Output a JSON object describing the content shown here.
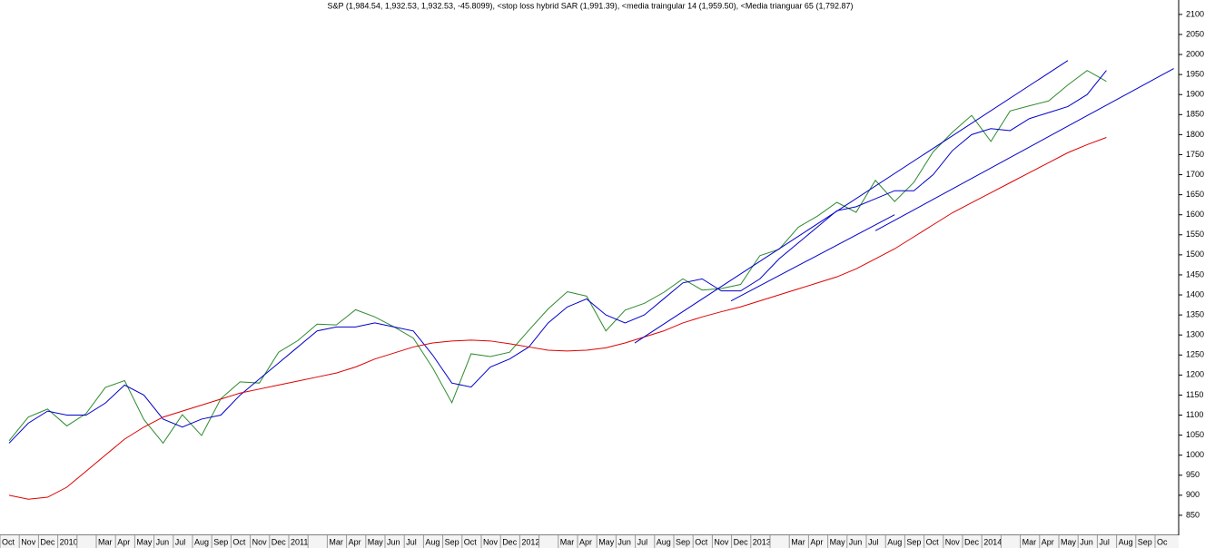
{
  "chart_data": {
    "type": "line",
    "title": "S&P (1,984.54, 1,932.53, 1,932.53, -45.8099), <stop loss hybrid SAR (1,991.39), <media traingular 14 (1,959.50), <Media trianguar 65 (1,792.87)",
    "categories": [
      "Oct",
      "Nov",
      "Dec",
      "2010",
      null,
      "Mar",
      "Apr",
      "May",
      "Jun",
      "Jul",
      "Aug",
      "Sep",
      "Oct",
      "Nov",
      "Dec",
      "2011",
      null,
      "Mar",
      "Apr",
      "May",
      "Jun",
      "Jul",
      "Aug",
      "Sep",
      "Oct",
      "Nov",
      "Dec",
      "2012",
      null,
      "Mar",
      "Apr",
      "May",
      "Jun",
      "Jul",
      "Aug",
      "Sep",
      "Oct",
      "Nov",
      "Dec",
      "2013",
      null,
      "Mar",
      "Apr",
      "May",
      "Jun",
      "Jul",
      "Aug",
      "Sep",
      "Oct",
      "Nov",
      "Dec",
      "2014",
      null,
      "Mar",
      "Apr",
      "May",
      "Jun",
      "Jul",
      "Aug",
      "Sep",
      "Oc"
    ],
    "series": [
      {
        "color": "#2e8b2e",
        "values": [
          1036,
          1095,
          1115,
          1073,
          1104,
          1169,
          1186,
          1089,
          1030,
          1101,
          1049,
          1141,
          1183,
          1180,
          1257,
          1286,
          1327,
          1325,
          1363,
          1345,
          1320,
          1292,
          1218,
          1131,
          1253,
          1246,
          1257,
          1312,
          1365,
          1408,
          1397,
          1310,
          1362,
          1379,
          1406,
          1440,
          1412,
          1416,
          1426,
          1498,
          1514,
          1569,
          1597,
          1631,
          1606,
          1686,
          1633,
          1681,
          1757,
          1806,
          1848,
          1783,
          1859,
          1872,
          1884,
          1924,
          1960,
          1933,
          null,
          null,
          null
        ]
      },
      {
        "color": "#0000cc",
        "values": [
          1030,
          1080,
          1110,
          1100,
          1100,
          1130,
          1175,
          1150,
          1090,
          1070,
          1090,
          1100,
          1150,
          1190,
          1230,
          1270,
          1310,
          1320,
          1320,
          1330,
          1320,
          1310,
          1250,
          1180,
          1170,
          1220,
          1240,
          1270,
          1330,
          1370,
          1390,
          1350,
          1330,
          1350,
          1390,
          1430,
          1440,
          1410,
          1410,
          1440,
          1490,
          1530,
          1570,
          1610,
          1620,
          1640,
          1660,
          1660,
          1700,
          1760,
          1800,
          1815,
          1810,
          1840,
          1855,
          1870,
          1900,
          1960,
          null,
          null,
          null
        ]
      },
      {
        "color": "#dd0000",
        "values": [
          900,
          890,
          895,
          920,
          960,
          1000,
          1040,
          1070,
          1095,
          1110,
          1125,
          1140,
          1155,
          1165,
          1175,
          1185,
          1195,
          1205,
          1220,
          1240,
          1255,
          1270,
          1280,
          1285,
          1287,
          1285,
          1278,
          1270,
          1262,
          1260,
          1262,
          1268,
          1280,
          1295,
          1310,
          1330,
          1345,
          1358,
          1370,
          1385,
          1400,
          1415,
          1430,
          1445,
          1465,
          1490,
          1515,
          1545,
          1575,
          1605,
          1630,
          1655,
          1680,
          1705,
          1730,
          1755,
          1775,
          1793,
          null,
          null,
          null
        ]
      }
    ],
    "trendlines": [
      {
        "color": "#0000cc",
        "x": [
          32.5,
          55
        ],
        "values": [
          1280,
          1985
        ]
      },
      {
        "color": "#0000cc",
        "x": [
          45,
          60.5
        ],
        "values": [
          1560,
          1965
        ]
      },
      {
        "color": "#0000cc",
        "x": [
          37.5,
          46
        ],
        "values": [
          1385,
          1600
        ]
      }
    ],
    "ylim": [
      800,
      2136
    ],
    "yticks": [
      850,
      900,
      950,
      1000,
      1050,
      1100,
      1150,
      1200,
      1250,
      1300,
      1350,
      1400,
      1450,
      1500,
      1550,
      1600,
      1650,
      1700,
      1750,
      1800,
      1850,
      1900,
      1950,
      2000,
      2050,
      2100
    ]
  }
}
